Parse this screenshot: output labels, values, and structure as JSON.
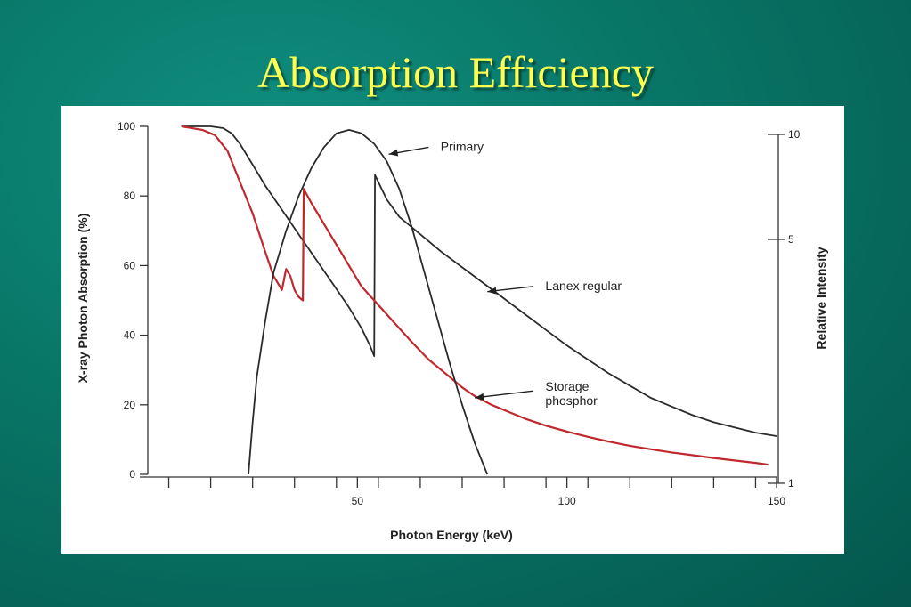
{
  "slide": {
    "title": "Absorption Efficiency",
    "title_color": "#ffff4d",
    "background": "#087566"
  },
  "chart_data": {
    "type": "line",
    "xlabel": "Photon Energy (keV)",
    "ylabel": "X-ray Photon Absorption (%)",
    "y2label": "Relative Intensity",
    "xlim": [
      0,
      150
    ],
    "ylim": [
      0,
      100
    ],
    "x_ticks": [
      5,
      15,
      25,
      35,
      45,
      55,
      65,
      75,
      85,
      95,
      105,
      115,
      125,
      135,
      145
    ],
    "x_tick_labels": [
      {
        "x": 50,
        "label": "50"
      },
      {
        "x": 100,
        "label": "100"
      },
      {
        "x": 150,
        "label": "150"
      }
    ],
    "y_ticks": [
      {
        "y": 0,
        "label": "0"
      },
      {
        "y": 20,
        "label": "20"
      },
      {
        "y": 40,
        "label": "40"
      },
      {
        "y": 60,
        "label": "60"
      },
      {
        "y": 80,
        "label": "80"
      },
      {
        "y": 100,
        "label": "100"
      }
    ],
    "y2_ticks": [
      {
        "v": 1,
        "label": "1"
      },
      {
        "v": 5,
        "label": "5"
      },
      {
        "v": 10,
        "label": "10"
      }
    ],
    "grid": false,
    "series": [
      {
        "name": "Lanex regular",
        "color": "#2b2b2b",
        "points": [
          [
            8,
            100
          ],
          [
            15,
            100
          ],
          [
            18,
            99.5
          ],
          [
            20,
            98
          ],
          [
            22,
            95
          ],
          [
            25,
            89
          ],
          [
            28,
            83
          ],
          [
            32,
            76
          ],
          [
            36,
            69
          ],
          [
            40,
            62
          ],
          [
            44,
            55
          ],
          [
            48,
            48
          ],
          [
            51,
            42
          ],
          [
            53,
            37
          ],
          [
            54,
            34
          ],
          [
            54.2,
            86
          ],
          [
            57,
            79
          ],
          [
            60,
            74
          ],
          [
            65,
            69
          ],
          [
            70,
            64
          ],
          [
            75,
            59.5
          ],
          [
            80,
            55
          ],
          [
            85,
            50.5
          ],
          [
            90,
            46
          ],
          [
            95,
            41.5
          ],
          [
            100,
            37
          ],
          [
            105,
            33
          ],
          [
            110,
            29
          ],
          [
            115,
            25.5
          ],
          [
            120,
            22
          ],
          [
            125,
            19.5
          ],
          [
            130,
            17
          ],
          [
            135,
            15
          ],
          [
            140,
            13.5
          ],
          [
            145,
            12
          ],
          [
            150,
            11
          ]
        ]
      },
      {
        "name": "Storage phosphor",
        "color": "#c0282d",
        "points": [
          [
            8,
            100
          ],
          [
            10,
            99.6
          ],
          [
            13,
            99
          ],
          [
            16,
            97.5
          ],
          [
            19,
            93
          ],
          [
            22,
            84
          ],
          [
            25,
            75
          ],
          [
            28,
            64
          ],
          [
            30,
            57
          ],
          [
            32,
            53
          ],
          [
            33,
            59
          ],
          [
            34,
            57
          ],
          [
            35,
            53
          ],
          [
            36,
            51
          ],
          [
            37,
            50
          ],
          [
            37.2,
            82
          ],
          [
            39,
            78
          ],
          [
            42,
            72
          ],
          [
            45,
            66
          ],
          [
            48,
            60
          ],
          [
            51,
            54
          ],
          [
            54,
            50
          ],
          [
            57,
            46
          ],
          [
            60,
            42
          ],
          [
            63,
            38
          ],
          [
            67,
            33
          ],
          [
            70,
            30
          ],
          [
            73,
            27
          ],
          [
            75,
            25
          ],
          [
            78,
            22.5
          ],
          [
            82,
            20
          ],
          [
            86,
            18
          ],
          [
            90,
            16
          ],
          [
            95,
            14
          ],
          [
            100,
            12.3
          ],
          [
            105,
            10.8
          ],
          [
            110,
            9.4
          ],
          [
            115,
            8.2
          ],
          [
            120,
            7.2
          ],
          [
            125,
            6.3
          ],
          [
            130,
            5.5
          ],
          [
            135,
            4.7
          ],
          [
            140,
            4
          ],
          [
            145,
            3.3
          ],
          [
            148,
            2.8
          ]
        ]
      },
      {
        "name": "Primary",
        "color": "#2b2b2b",
        "points": [
          [
            24,
            0
          ],
          [
            25,
            15
          ],
          [
            26,
            28
          ],
          [
            28,
            44
          ],
          [
            30,
            58
          ],
          [
            33,
            70
          ],
          [
            36,
            80
          ],
          [
            39,
            88
          ],
          [
            42,
            94
          ],
          [
            45,
            98
          ],
          [
            48,
            99
          ],
          [
            51,
            98
          ],
          [
            54,
            95
          ],
          [
            57,
            90
          ],
          [
            60,
            82
          ],
          [
            63,
            71
          ],
          [
            66,
            58
          ],
          [
            69,
            45
          ],
          [
            72,
            32
          ],
          [
            75,
            20
          ],
          [
            78,
            9
          ],
          [
            81,
            0
          ]
        ]
      }
    ],
    "annotations": [
      {
        "lines": [
          "Primary"
        ],
        "arrow_to": [
          57.5,
          92
        ],
        "text_at": [
          69,
          93
        ],
        "arrow_from": [
          67,
          94
        ]
      },
      {
        "lines": [
          "Lanex regular"
        ],
        "arrow_to": [
          81,
          52.5
        ],
        "text_at": [
          94,
          53
        ],
        "arrow_from": [
          92,
          54
        ]
      },
      {
        "lines": [
          "Storage",
          "phosphor"
        ],
        "arrow_to": [
          78,
          22
        ],
        "text_at": [
          94,
          24
        ],
        "arrow_from": [
          92,
          24
        ]
      }
    ]
  }
}
